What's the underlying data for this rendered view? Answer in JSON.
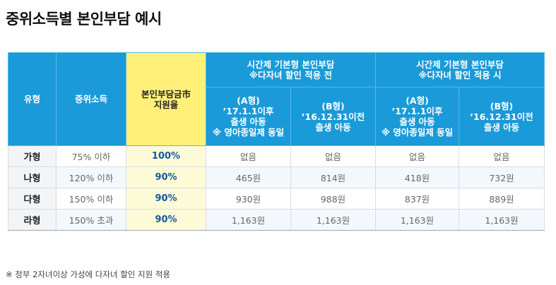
{
  "title": "중위소득별 본인부담 예시",
  "header": {
    "type": "유형",
    "income": "중위소득",
    "rate_l1": "본인부담금市",
    "rate_l2": "지원율",
    "group1_l1": "시간제 기본형 본인부담",
    "group1_l2": "※다자녀 할인 적용 전",
    "group2_l1": "시간제 기본형 본인부담",
    "group2_l2": "※다자녀 할인 적용 시",
    "sub_a_l1": "(A형)",
    "sub_a_l2": "’17.1.1이후",
    "sub_a_l3": "출생 아동",
    "sub_a_l4": "※ 영아종일제 동일",
    "sub_b_l1": "(B형)",
    "sub_b_l2": "’16.12.31이전",
    "sub_b_l3": "출생 아동"
  },
  "rows": [
    {
      "type": "가형",
      "income": "75% 이하",
      "rate": "100%",
      "a1": "없음",
      "b1": "없음",
      "a2": "없음",
      "b2": "없음"
    },
    {
      "type": "나형",
      "income": "120% 이하",
      "rate": "90%",
      "a1": "465원",
      "b1": "814원",
      "a2": "418원",
      "b2": "732원"
    },
    {
      "type": "다형",
      "income": "150% 이하",
      "rate": "90%",
      "a1": "930원",
      "b1": "988원",
      "a2": "837원",
      "b2": "889원"
    },
    {
      "type": "라형",
      "income": "150% 초과",
      "rate": "90%",
      "a1": "1,163원",
      "b1": "1,163원",
      "a2": "1,163원",
      "b2": "1,163원"
    }
  ],
  "footnote": "※ 정부 2자녀이상 가성에 다자녀 할인 지원 적용"
}
